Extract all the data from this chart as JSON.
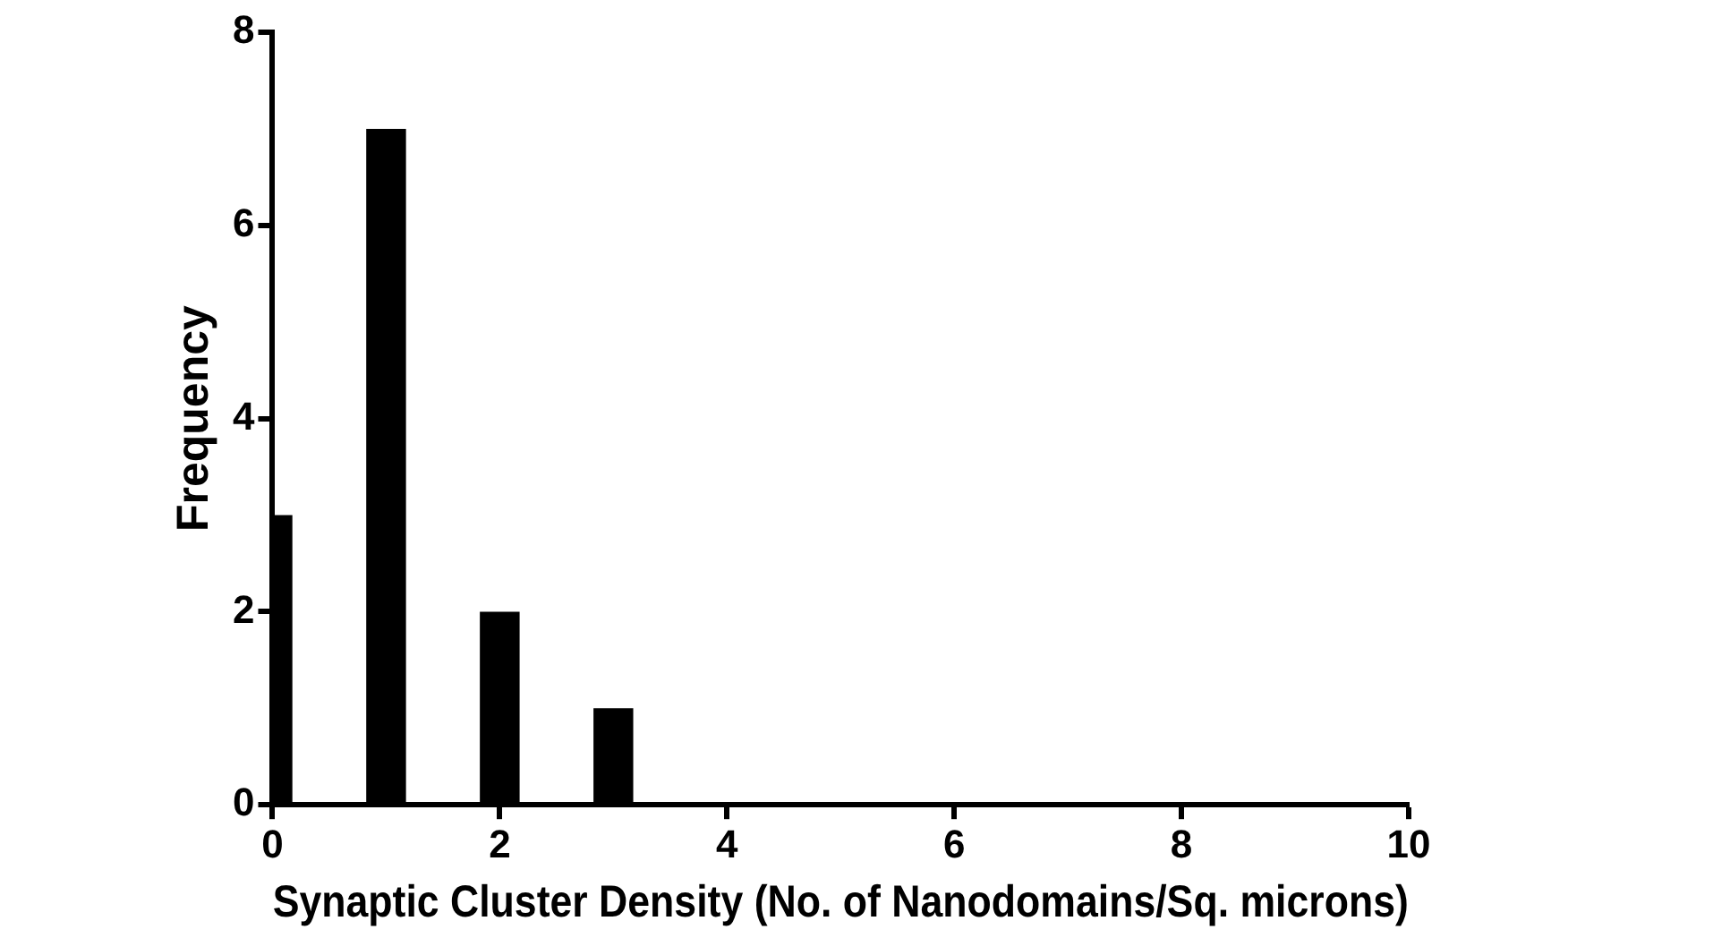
{
  "chart_data": {
    "type": "bar",
    "xlabel": "Synaptic Cluster Density (No. of Nanodomains/Sq. microns)",
    "ylabel": "Frequency",
    "x": [
      0,
      1,
      2,
      3
    ],
    "values": [
      3,
      7,
      2,
      1
    ],
    "color": "#000000",
    "xlim": [
      0,
      10
    ],
    "xticks": [
      0,
      2,
      4,
      6,
      8,
      10
    ],
    "ylim": [
      0,
      8
    ],
    "yticks": [
      0,
      2,
      4,
      6,
      8
    ],
    "grid": false,
    "legend": false
  }
}
